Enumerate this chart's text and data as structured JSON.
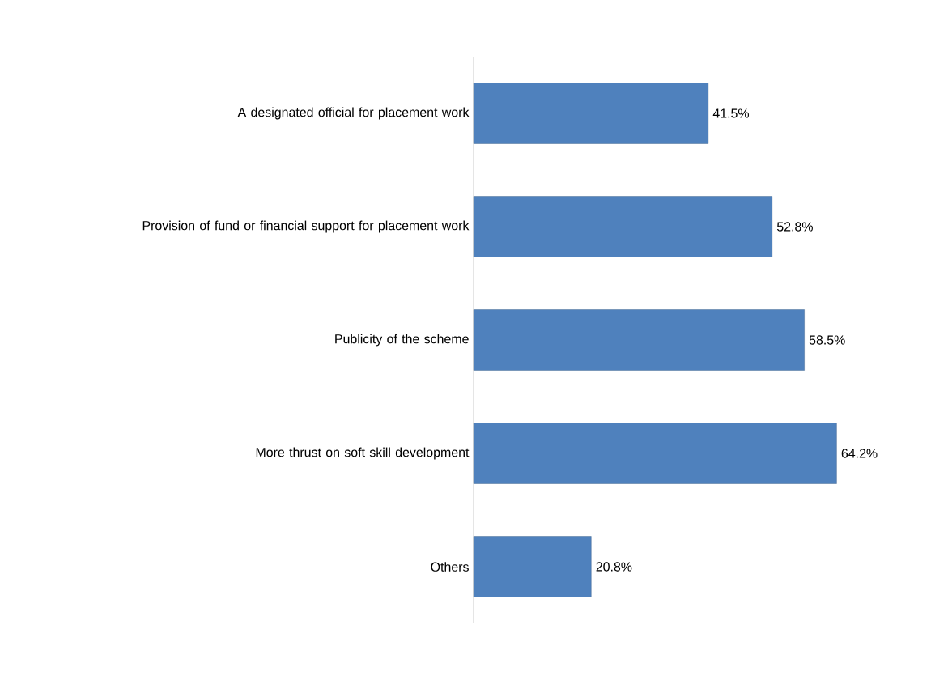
{
  "chart_data": {
    "type": "bar",
    "orientation": "horizontal",
    "categories": [
      "A designated official for placement work",
      "Provision of fund or financial support for placement work",
      "Publicity of the scheme",
      "More thrust on soft skill development",
      "Others"
    ],
    "values": [
      41.5,
      52.8,
      58.5,
      64.2,
      20.8
    ],
    "value_labels": [
      "41.5%",
      "52.8%",
      "58.5%",
      "64.2%",
      "20.8%"
    ],
    "color": "#4f81bd"
  }
}
